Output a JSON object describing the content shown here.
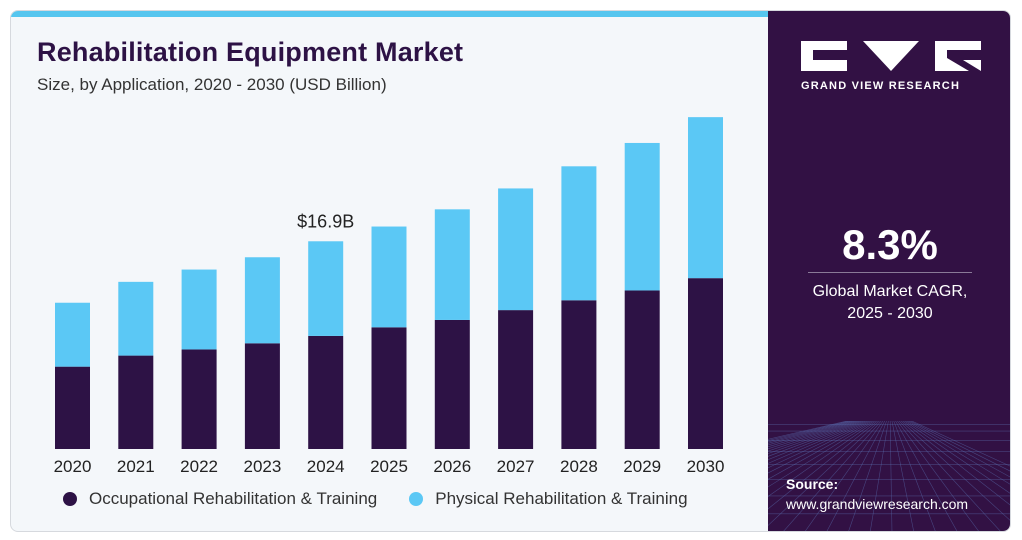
{
  "header": {
    "title": "Rehabilitation Equipment Market",
    "subtitle": "Size, by Application, 2020 - 2030 (USD Billion)"
  },
  "colors": {
    "occupational": "#2d1245",
    "physical": "#5bc8f5",
    "accent": "#56c6ef",
    "sidebar": "#321144"
  },
  "chart_data": {
    "type": "bar",
    "stacked": true,
    "categories": [
      "2020",
      "2021",
      "2022",
      "2023",
      "2024",
      "2025",
      "2026",
      "2027",
      "2028",
      "2029",
      "2030"
    ],
    "series": [
      {
        "name": "Occupational Rehabilitation & Training",
        "values": [
          6.7,
          7.6,
          8.1,
          8.6,
          9.2,
          9.9,
          10.5,
          11.3,
          12.1,
          12.9,
          13.9
        ]
      },
      {
        "name": "Physical Rehabilitation & Training",
        "values": [
          5.2,
          6.0,
          6.5,
          7.0,
          7.7,
          8.2,
          9.0,
          9.9,
          10.9,
          12.0,
          13.1
        ]
      }
    ],
    "annotations": [
      {
        "category": "2024",
        "text": "$16.9B"
      }
    ],
    "title": "Rehabilitation Equipment Market",
    "subtitle": "Size, by Application, 2020 - 2030 (USD Billion)",
    "ylim": [
      0,
      27.5
    ],
    "grid": false,
    "legend": "bottom"
  },
  "sidebar": {
    "logo_icon": "grand-view-research-logo-icon",
    "logo_text": "GRAND VIEW RESEARCH",
    "cagr_value": "8.3%",
    "cagr_label_line1": "Global Market CAGR,",
    "cagr_label_line2": "2025 - 2030",
    "source_label": "Source:",
    "source_url": "www.grandviewresearch.com"
  }
}
